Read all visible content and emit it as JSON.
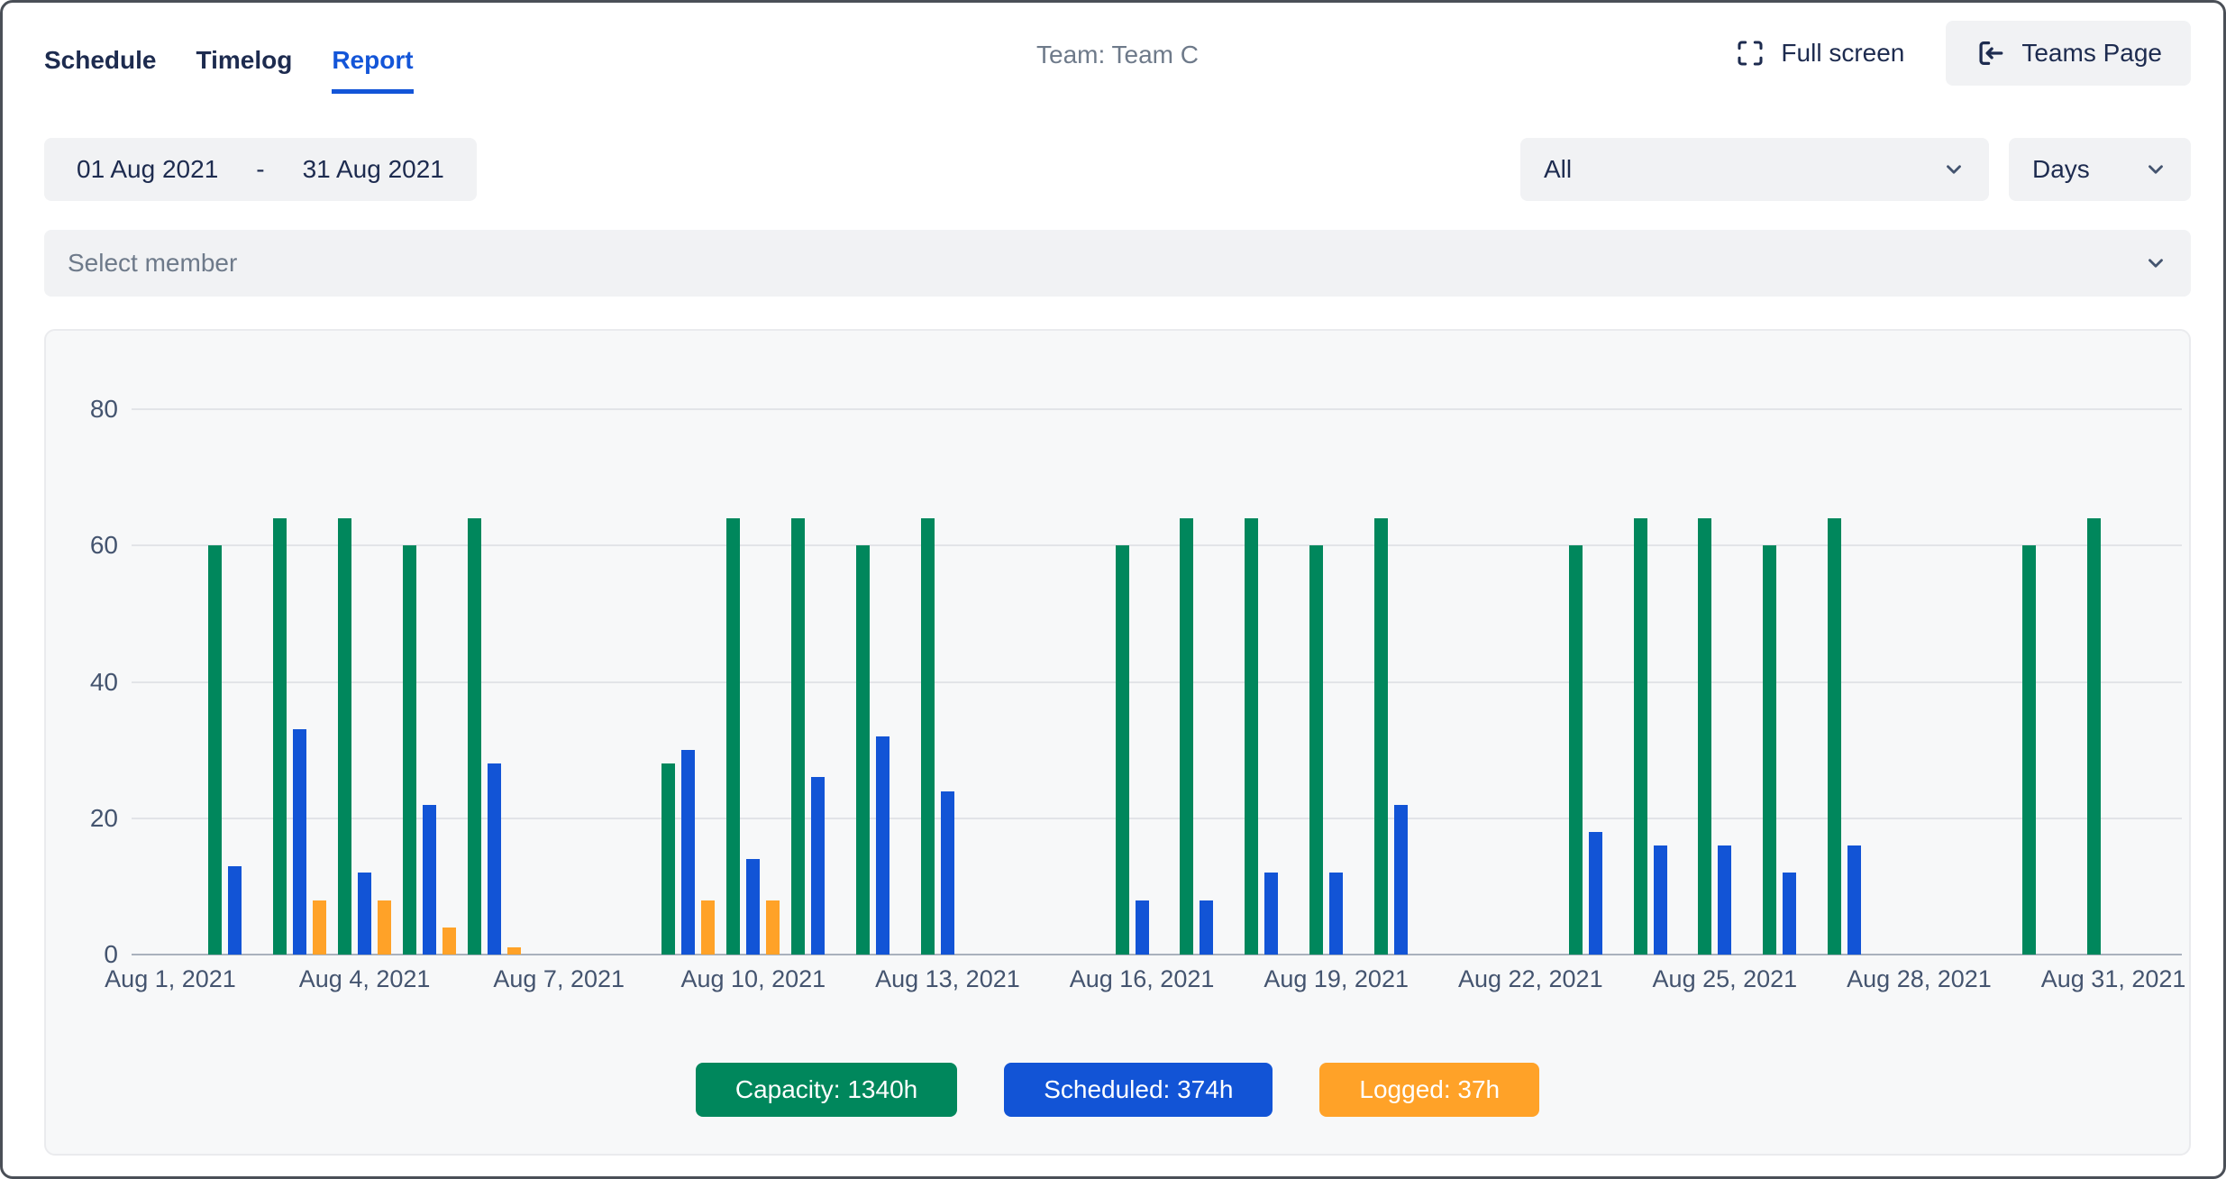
{
  "header": {
    "tabs": [
      {
        "label": "Schedule",
        "active": false
      },
      {
        "label": "Timelog",
        "active": false
      },
      {
        "label": "Report",
        "active": true
      }
    ],
    "team_label": "Team: Team C",
    "fullscreen_label": "Full screen",
    "teams_page_label": "Teams Page"
  },
  "filters": {
    "date_from": "01 Aug 2021",
    "date_separator": "-",
    "date_to": "31 Aug 2021",
    "scope_selected": "All",
    "granularity_selected": "Days",
    "member_placeholder": "Select member"
  },
  "legend": [
    {
      "label": "Capacity: 1340h",
      "color": "#00875C"
    },
    {
      "label": "Scheduled: 374h",
      "color": "#1254D6"
    },
    {
      "label": "Logged: 37h",
      "color": "#FFA228"
    }
  ],
  "chart_data": {
    "type": "bar",
    "title": "",
    "xlabel": "",
    "ylabel": "",
    "ylim": [
      0,
      80
    ],
    "yticks": [
      0,
      20,
      40,
      60,
      80
    ],
    "grid": true,
    "legend_position": "bottom",
    "x_tick_days": [
      1,
      4,
      7,
      10,
      13,
      16,
      19,
      22,
      25,
      28,
      31
    ],
    "x_tick_labels": [
      "Aug 1, 2021",
      "Aug 4, 2021",
      "Aug 7, 2021",
      "Aug 10, 2021",
      "Aug 13, 2021",
      "Aug 16, 2021",
      "Aug 19, 2021",
      "Aug 22, 2021",
      "Aug 25, 2021",
      "Aug 28, 2021",
      "Aug 31, 2021"
    ],
    "days": [
      1,
      2,
      3,
      4,
      5,
      6,
      7,
      8,
      9,
      10,
      11,
      12,
      13,
      14,
      15,
      16,
      17,
      18,
      19,
      20,
      21,
      22,
      23,
      24,
      25,
      26,
      27,
      28,
      29,
      30,
      31
    ],
    "series": [
      {
        "name": "Capacity",
        "color": "#00875C",
        "values": [
          0,
          60,
          64,
          64,
          60,
          64,
          0,
          0,
          28,
          64,
          64,
          60,
          64,
          0,
          0,
          60,
          64,
          64,
          60,
          64,
          0,
          0,
          60,
          64,
          64,
          60,
          64,
          0,
          0,
          60,
          64
        ]
      },
      {
        "name": "Scheduled",
        "color": "#1254D6",
        "values": [
          0,
          13,
          33,
          12,
          22,
          28,
          0,
          0,
          30,
          14,
          26,
          32,
          24,
          0,
          0,
          8,
          8,
          12,
          12,
          22,
          0,
          0,
          18,
          16,
          16,
          12,
          16,
          0,
          0,
          0,
          0
        ]
      },
      {
        "name": "Logged",
        "color": "#FFA228",
        "values": [
          0,
          0,
          8,
          8,
          4,
          1,
          0,
          0,
          8,
          8,
          0,
          0,
          0,
          0,
          0,
          0,
          0,
          0,
          0,
          0,
          0,
          0,
          0,
          0,
          0,
          0,
          0,
          0,
          0,
          0,
          0
        ]
      }
    ],
    "totals": {
      "capacity_h": 1340,
      "scheduled_h": 374,
      "logged_h": 37
    }
  }
}
